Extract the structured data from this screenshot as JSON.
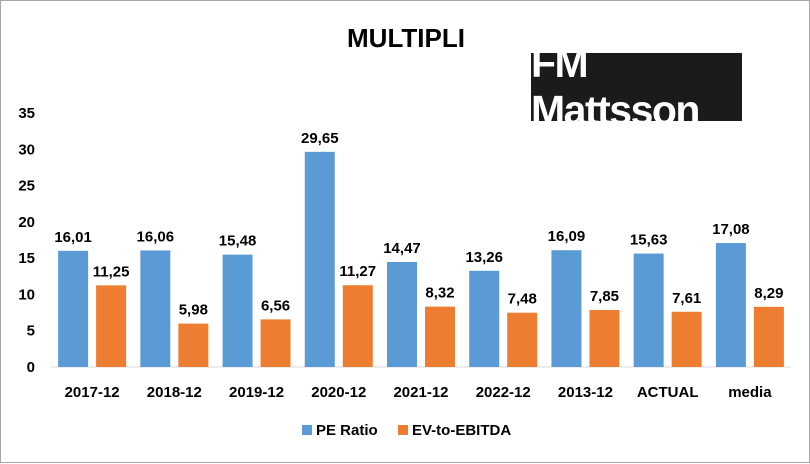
{
  "chart_data": {
    "type": "bar",
    "title": "MULTIPLI",
    "categories": [
      "2017-12",
      "2018-12",
      "2019-12",
      "2020-12",
      "2021-12",
      "2022-12",
      "2013-12",
      "ACTUAL",
      "media"
    ],
    "series": [
      {
        "name": "PE Ratio",
        "values": [
          16.01,
          16.06,
          15.48,
          29.65,
          14.47,
          13.26,
          16.09,
          15.63,
          17.08
        ],
        "labels": [
          "16,01",
          "16,06",
          "15,48",
          "29,65",
          "14,47",
          "13,26",
          "16,09",
          "15,63",
          "17,08"
        ],
        "color": "#5b9bd5"
      },
      {
        "name": "EV-to-EBITDA",
        "values": [
          11.25,
          5.98,
          6.56,
          11.27,
          8.32,
          7.48,
          7.85,
          7.61,
          8.29
        ],
        "labels": [
          "11,25",
          "5,98",
          "6,56",
          "11,27",
          "8,32",
          "7,48",
          "7,85",
          "7,61",
          "8,29"
        ],
        "color": "#ed7d31"
      }
    ],
    "ylim": [
      0,
      35
    ],
    "yticks": [
      0,
      5,
      10,
      15,
      20,
      25,
      30,
      35
    ],
    "grid": false,
    "legend_position": "bottom"
  },
  "logo_text": "FM Mattsson"
}
